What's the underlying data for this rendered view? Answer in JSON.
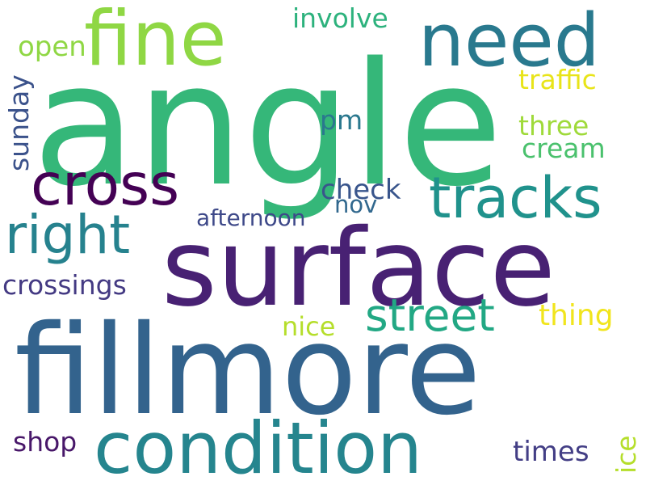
{
  "words": [
    {
      "text": "angle",
      "color": "#35b779"
    },
    {
      "text": "surface",
      "color": "#482173"
    },
    {
      "text": "fillmore",
      "color": "#33638d"
    },
    {
      "text": "fine",
      "color": "#8fd744"
    },
    {
      "text": "need",
      "color": "#29798e"
    },
    {
      "text": "condition",
      "color": "#25858e"
    },
    {
      "text": "cross",
      "color": "#440154"
    },
    {
      "text": "tracks",
      "color": "#20928c"
    },
    {
      "text": "right",
      "color": "#26828e"
    },
    {
      "text": "street",
      "color": "#22a884"
    },
    {
      "text": "involve",
      "color": "#2db27d"
    },
    {
      "text": "open",
      "color": "#8fd744"
    },
    {
      "text": "traffic",
      "color": "#e8e419"
    },
    {
      "text": "three",
      "color": "#9fda3a"
    },
    {
      "text": "cream",
      "color": "#4ac16d"
    },
    {
      "text": "pm",
      "color": "#2a788e"
    },
    {
      "text": "check",
      "color": "#39558c"
    },
    {
      "text": "nov",
      "color": "#31688e"
    },
    {
      "text": "afternoon",
      "color": "#3e4989"
    },
    {
      "text": "sunday",
      "color": "#3b528b"
    },
    {
      "text": "crossings",
      "color": "#443a83"
    },
    {
      "text": "nice",
      "color": "#b5de2b"
    },
    {
      "text": "thing",
      "color": "#f1e51d"
    },
    {
      "text": "shop",
      "color": "#481769"
    },
    {
      "text": "times",
      "color": "#433e85"
    },
    {
      "text": "ice",
      "color": "#b5de2b"
    }
  ]
}
